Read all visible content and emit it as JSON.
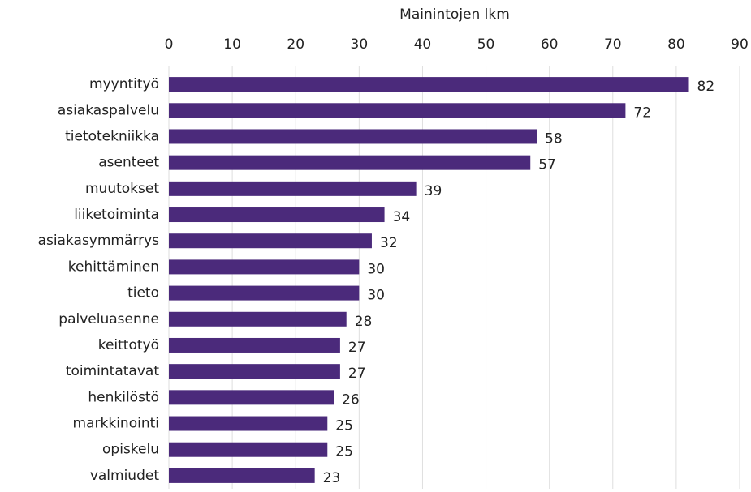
{
  "chart_data": {
    "type": "bar",
    "orientation": "horizontal",
    "x_label": "Mainintojen lkm",
    "categories": [
      "myyntityö",
      "asiakaspalvelu",
      "tietotekniikka",
      "asenteet",
      "muutokset",
      "liiketoiminta",
      "asiakasymmärrys",
      "kehittäminen",
      "tieto",
      "palveluasenne",
      "keittotyö",
      "toimintatavat",
      "henkilöstö",
      "markkinointi",
      "opiskelu",
      "valmiudet"
    ],
    "values": [
      82,
      72,
      58,
      57,
      39,
      34,
      32,
      30,
      30,
      28,
      27,
      27,
      26,
      25,
      25,
      23
    ],
    "color": "#4b2a7b",
    "xlim": [
      0,
      90
    ],
    "xticks": [
      0,
      10,
      20,
      30,
      40,
      50,
      60,
      70,
      80,
      90
    ],
    "grid": true
  }
}
